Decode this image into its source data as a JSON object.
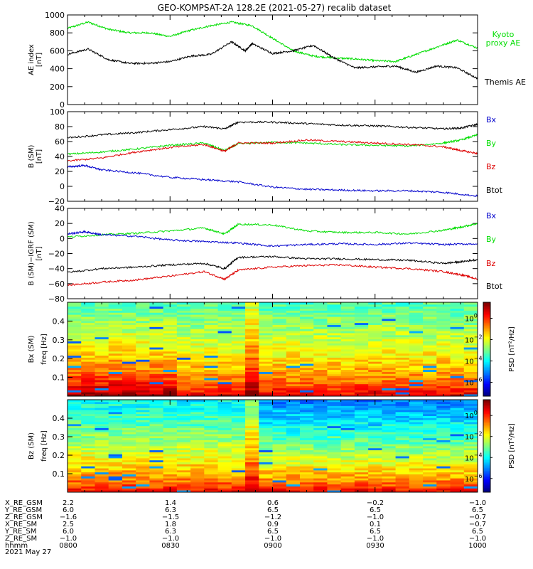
{
  "title": "GEO-KOMPSAT-2A 128.2E (2021-05-27) recalib dataset",
  "colors": {
    "green": "#00dd00",
    "black": "#000000",
    "blue": "#0000cc",
    "red": "#dd0000"
  },
  "chart_data": [
    {
      "type": "line",
      "panel": "ae",
      "ylabel_lines": [
        "AE index",
        "[nT]"
      ],
      "ylim": [
        0,
        1000
      ],
      "yticks": [
        0,
        200,
        400,
        600,
        800,
        1000
      ],
      "xlim": [
        0,
        120
      ],
      "series": [
        {
          "name": "Kyoto proxy AE",
          "name_lines": [
            "Kyoto",
            "proxy AE"
          ],
          "color": "green",
          "x": [
            0,
            6,
            12,
            18,
            24,
            30,
            36,
            42,
            48,
            54,
            60,
            66,
            72,
            78,
            84,
            90,
            96,
            102,
            108,
            114,
            120
          ],
          "values": [
            850,
            920,
            840,
            800,
            800,
            760,
            830,
            880,
            920,
            880,
            740,
            600,
            540,
            520,
            510,
            490,
            480,
            560,
            640,
            720,
            630
          ]
        },
        {
          "name": "Themis AE",
          "name_lines": [
            "Themis AE"
          ],
          "color": "black",
          "x": [
            0,
            6,
            12,
            18,
            24,
            30,
            36,
            42,
            48,
            52,
            54,
            60,
            66,
            72,
            78,
            84,
            90,
            96,
            102,
            108,
            114,
            120
          ],
          "values": [
            560,
            620,
            500,
            460,
            460,
            480,
            540,
            560,
            700,
            600,
            680,
            570,
            600,
            660,
            520,
            410,
            420,
            430,
            360,
            430,
            410,
            290
          ]
        }
      ]
    },
    {
      "type": "line",
      "panel": "bsm",
      "ylabel_lines": [
        "B (SM)",
        "[nT]"
      ],
      "ylim": [
        -20,
        100
      ],
      "yticks": [
        -20,
        0,
        20,
        40,
        60,
        80,
        100
      ],
      "xlim": [
        0,
        120
      ],
      "legend": [
        {
          "label": "Bx",
          "color": "blue"
        },
        {
          "label": "By",
          "color": "green"
        },
        {
          "label": "Bz",
          "color": "red"
        },
        {
          "label": "Btot",
          "color": "black"
        }
      ],
      "series": [
        {
          "name": "Btot",
          "color": "black",
          "x": [
            0,
            10,
            20,
            30,
            40,
            46,
            50,
            60,
            70,
            80,
            90,
            100,
            110,
            115,
            120
          ],
          "values": [
            65,
            69,
            72,
            76,
            80,
            77,
            86,
            86,
            84,
            82,
            81,
            79,
            77,
            78,
            83
          ]
        },
        {
          "name": "By",
          "color": "green",
          "x": [
            0,
            10,
            20,
            30,
            40,
            46,
            50,
            60,
            70,
            80,
            90,
            100,
            110,
            115,
            120
          ],
          "values": [
            43,
            46,
            50,
            55,
            58,
            48,
            57,
            59,
            58,
            56,
            55,
            54,
            58,
            62,
            69
          ]
        },
        {
          "name": "Bz",
          "color": "red",
          "x": [
            0,
            10,
            20,
            30,
            40,
            46,
            50,
            60,
            70,
            80,
            90,
            100,
            110,
            115,
            120
          ],
          "values": [
            34,
            38,
            46,
            52,
            56,
            47,
            58,
            58,
            62,
            60,
            58,
            56,
            53,
            48,
            44
          ]
        },
        {
          "name": "Bx",
          "color": "blue",
          "x": [
            0,
            5,
            10,
            20,
            30,
            40,
            50,
            60,
            70,
            80,
            90,
            100,
            110,
            120
          ],
          "values": [
            26,
            28,
            22,
            18,
            12,
            9,
            6,
            -1,
            -4,
            -5,
            -6,
            -6,
            -8,
            -13
          ]
        }
      ]
    },
    {
      "type": "line",
      "panel": "bigrf",
      "ylabel_lines": [
        "B (SM)−IGRF (SM)",
        "[nT]"
      ],
      "ylim": [
        -80,
        40
      ],
      "yticks": [
        -80,
        -60,
        -40,
        -20,
        0,
        20,
        40
      ],
      "xlim": [
        0,
        120
      ],
      "legend": [
        {
          "label": "Bx",
          "color": "blue"
        },
        {
          "label": "By",
          "color": "green"
        },
        {
          "label": "Bz",
          "color": "red"
        },
        {
          "label": "Btot",
          "color": "black"
        }
      ],
      "series": [
        {
          "name": "By",
          "color": "green",
          "x": [
            0,
            10,
            20,
            30,
            40,
            46,
            50,
            60,
            70,
            80,
            90,
            100,
            110,
            115,
            120
          ],
          "values": [
            2,
            5,
            7,
            10,
            14,
            6,
            19,
            18,
            10,
            8,
            8,
            6,
            11,
            15,
            20
          ]
        },
        {
          "name": "Bx",
          "color": "blue",
          "x": [
            0,
            5,
            10,
            20,
            30,
            40,
            50,
            60,
            70,
            80,
            90,
            100,
            110,
            120
          ],
          "values": [
            6,
            9,
            5,
            3,
            -2,
            -4,
            -6,
            -10,
            -8,
            -7,
            -8,
            -6,
            -8,
            -7
          ]
        },
        {
          "name": "Btot",
          "color": "black",
          "x": [
            0,
            10,
            20,
            30,
            40,
            46,
            50,
            60,
            70,
            80,
            90,
            100,
            110,
            115,
            120
          ],
          "values": [
            -45,
            -40,
            -38,
            -35,
            -33,
            -40,
            -25,
            -24,
            -27,
            -27,
            -28,
            -29,
            -33,
            -31,
            -28
          ]
        },
        {
          "name": "Bz",
          "color": "red",
          "x": [
            0,
            10,
            20,
            30,
            40,
            46,
            50,
            60,
            70,
            80,
            90,
            100,
            110,
            115,
            120
          ],
          "values": [
            -62,
            -58,
            -55,
            -50,
            -44,
            -54,
            -42,
            -38,
            -36,
            -35,
            -38,
            -40,
            -44,
            -48,
            -54
          ]
        }
      ]
    },
    {
      "type": "heatmap",
      "panel": "bx_spec",
      "ylabel_lines": [
        "Bx (SM)",
        "freq  [Hz]"
      ],
      "ylim": [
        0,
        0.5
      ],
      "yticks": [
        0.1,
        0.2,
        0.3,
        0.4
      ],
      "colorbar_label": "PSD  [nT²/Hz]",
      "colorbar_ticks": [
        {
          "base": "10",
          "exp": "0",
          "v": 0
        },
        {
          "base": "10",
          "exp": "−2",
          "v": -2
        },
        {
          "base": "10",
          "exp": "−4",
          "v": -4
        },
        {
          "base": "10",
          "exp": "−6",
          "v": -6
        }
      ]
    },
    {
      "type": "heatmap",
      "panel": "bz_spec",
      "ylabel_lines": [
        "Bz (SM)",
        "freq  [Hz]"
      ],
      "ylim": [
        0,
        0.5
      ],
      "yticks": [
        0.1,
        0.2,
        0.3,
        0.4
      ],
      "colorbar_label": "PSD  [nT²/Hz]",
      "colorbar_ticks": [
        {
          "base": "10",
          "exp": "0",
          "v": 0
        },
        {
          "base": "10",
          "exp": "−2",
          "v": -2
        },
        {
          "base": "10",
          "exp": "−4",
          "v": -4
        },
        {
          "base": "10",
          "exp": "−6",
          "v": -6
        }
      ]
    }
  ],
  "orbit": {
    "rows": [
      {
        "label": "X_RE_GSM",
        "values": [
          "2.2",
          "1.4",
          "0.6",
          "−0.2",
          "−1.0"
        ]
      },
      {
        "label": "Y_RE_GSM",
        "values": [
          "6.0",
          "6.3",
          "6.5",
          "6.5",
          "6.5"
        ]
      },
      {
        "label": "Z_RE_GSM",
        "values": [
          "−1.6",
          "−1.5",
          "−1.2",
          "−1.0",
          "−0.7"
        ]
      },
      {
        "label": "X_RE_SM",
        "values": [
          "2.5",
          "1.8",
          "0.9",
          "0.1",
          "−0.7"
        ]
      },
      {
        "label": "Y_RE_SM",
        "values": [
          "6.0",
          "6.3",
          "6.5",
          "6.5",
          "6.5"
        ]
      },
      {
        "label": "Z_RE_SM",
        "values": [
          "−1.0",
          "−1.0",
          "−1.0",
          "−1.0",
          "−1.0"
        ]
      },
      {
        "label": "hhmm",
        "values": [
          "0800",
          "0830",
          "0900",
          "0930",
          "1000"
        ]
      }
    ],
    "date": "2021 May 27"
  }
}
